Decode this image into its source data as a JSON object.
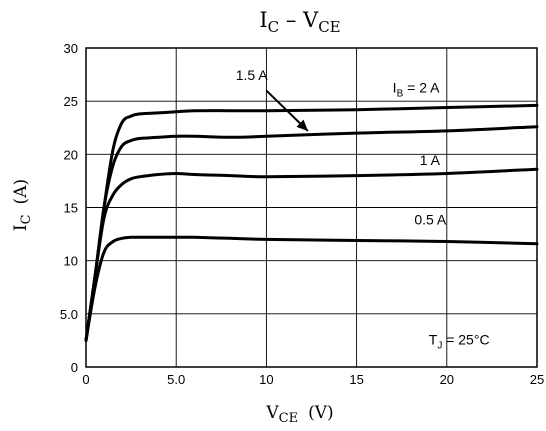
{
  "chart_data": {
    "type": "line",
    "title": {
      "main": "I",
      "sub": "C",
      "sep": " – ",
      "main2": "V",
      "sub2": "CE"
    },
    "xlabel": {
      "main": "V",
      "sub": "CE",
      "unit": "(V)"
    },
    "ylabel": {
      "main": "I",
      "sub": "C",
      "unit": "(A)"
    },
    "xlim": [
      0,
      25
    ],
    "ylim": [
      0,
      30
    ],
    "x_ticks": [
      {
        "v": 0,
        "label": "0"
      },
      {
        "v": 5,
        "label": "5.0"
      },
      {
        "v": 10,
        "label": "10"
      },
      {
        "v": 15,
        "label": "15"
      },
      {
        "v": 20,
        "label": "20"
      },
      {
        "v": 25,
        "label": "25"
      }
    ],
    "y_ticks": [
      {
        "v": 0,
        "label": "0"
      },
      {
        "v": 5,
        "label": "5.0"
      },
      {
        "v": 10,
        "label": "10"
      },
      {
        "v": 15,
        "label": "15"
      },
      {
        "v": 20,
        "label": "20"
      },
      {
        "v": 25,
        "label": "25"
      },
      {
        "v": 30,
        "label": "30"
      }
    ],
    "grid": true,
    "series": [
      {
        "name": "IB = 2 A",
        "x": [
          0,
          0.5,
          1.0,
          1.5,
          2.0,
          2.5,
          3.0,
          4.0,
          5.0,
          6.0,
          8.0,
          10.0,
          15.0,
          20.0,
          25.0
        ],
        "y": [
          2.5,
          8.5,
          15.0,
          20.5,
          23.0,
          23.6,
          23.8,
          23.9,
          24.0,
          24.1,
          24.1,
          24.1,
          24.2,
          24.4,
          24.6
        ]
      },
      {
        "name": "1.5 A",
        "x": [
          0,
          0.5,
          1.0,
          1.5,
          2.0,
          2.5,
          3.0,
          4.0,
          5.0,
          6.0,
          8.0,
          10.0,
          15.0,
          20.0,
          25.0
        ],
        "y": [
          2.5,
          8.5,
          15.0,
          19.0,
          20.8,
          21.3,
          21.5,
          21.6,
          21.7,
          21.7,
          21.6,
          21.7,
          22.0,
          22.2,
          22.6
        ]
      },
      {
        "name": "1 A",
        "x": [
          0,
          0.5,
          1.0,
          1.5,
          2.0,
          2.5,
          3.0,
          4.0,
          5.0,
          6.0,
          8.0,
          10.0,
          15.0,
          20.0,
          25.0
        ],
        "y": [
          2.5,
          8.5,
          14.0,
          16.2,
          17.2,
          17.7,
          17.9,
          18.1,
          18.2,
          18.1,
          18.0,
          17.9,
          18.0,
          18.2,
          18.6
        ]
      },
      {
        "name": "0.5 A",
        "x": [
          0,
          0.5,
          1.0,
          1.5,
          2.0,
          2.5,
          3.0,
          4.0,
          5.0,
          6.0,
          8.0,
          10.0,
          15.0,
          20.0,
          25.0
        ],
        "y": [
          2.5,
          7.5,
          10.8,
          11.8,
          12.1,
          12.2,
          12.2,
          12.2,
          12.2,
          12.2,
          12.1,
          12.0,
          11.9,
          11.8,
          11.6
        ]
      }
    ],
    "annotations": [
      {
        "id": "ib2",
        "main": "I",
        "sub": "B",
        "rest": " = 2 A",
        "x": 17.0,
        "y": 25.8
      },
      {
        "id": "ib15",
        "main": "1.5 A",
        "x": 8.3,
        "y": 27.0
      },
      {
        "id": "ib1",
        "main": "1 A",
        "x": 18.5,
        "y": 19.0
      },
      {
        "id": "ib05",
        "main": "0.5 A",
        "x": 18.2,
        "y": 13.4
      },
      {
        "id": "tj",
        "main": "T",
        "sub": "J",
        "rest": " = 25°C",
        "x": 19.0,
        "y": 2.1
      }
    ],
    "arrow": {
      "from": [
        10.0,
        26.0
      ],
      "to": [
        12.3,
        22.2
      ]
    }
  }
}
